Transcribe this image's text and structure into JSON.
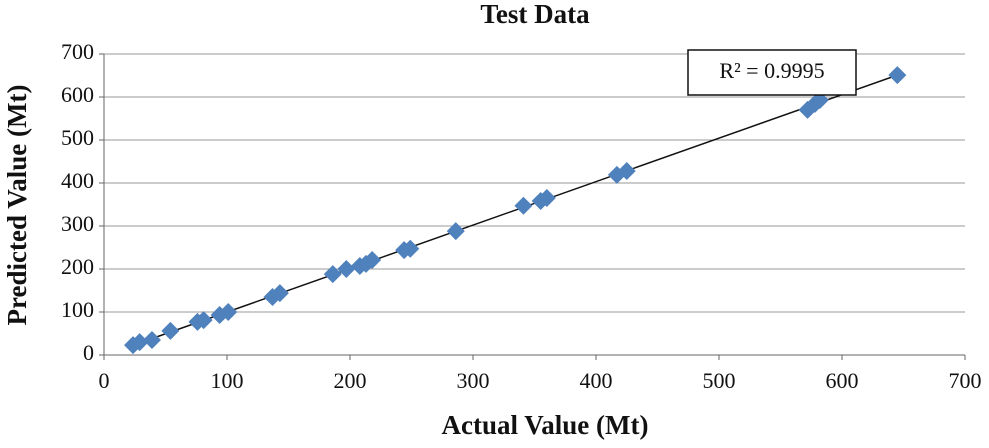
{
  "chart_data": {
    "type": "scatter",
    "title": "Test Data",
    "x_label": "Actual Value (Mt)",
    "y_label": "Predicted Value (Mt)",
    "x": [
      23.6,
      29,
      39,
      54,
      76,
      81,
      94,
      101,
      137,
      143,
      186,
      197,
      208,
      213,
      218,
      244,
      249,
      286,
      341,
      355,
      360,
      417,
      425,
      572,
      578,
      582,
      645
    ],
    "values": [
      23,
      30,
      35,
      56,
      77,
      81,
      93,
      100,
      135,
      144,
      188,
      200,
      207,
      212,
      221,
      244,
      247,
      288,
      347,
      358,
      365,
      419,
      428,
      570,
      584,
      593,
      651
    ],
    "color": "#4f81bd",
    "trendline": true,
    "annotation": "R² = 0.9995",
    "xlim": [
      0,
      700
    ],
    "xticks": [
      0,
      100,
      200,
      300,
      400,
      500,
      600,
      700
    ],
    "ylim": [
      0,
      700
    ],
    "yticks": [
      0,
      100,
      200,
      300,
      400,
      500,
      600,
      700
    ],
    "grid": true
  }
}
